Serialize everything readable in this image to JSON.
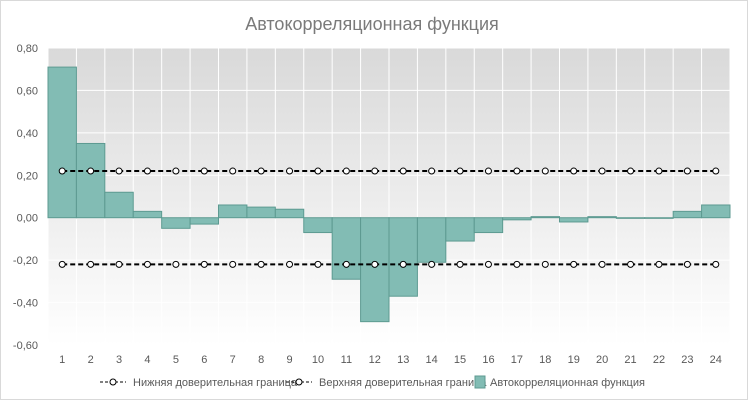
{
  "chart_data": {
    "type": "bar",
    "title": "Автокорреляционная функция",
    "xlabel": "",
    "ylabel": "",
    "categories": [
      "1",
      "2",
      "3",
      "4",
      "5",
      "6",
      "7",
      "8",
      "9",
      "10",
      "11",
      "12",
      "13",
      "14",
      "15",
      "16",
      "17",
      "18",
      "19",
      "20",
      "21",
      "22",
      "23",
      "24"
    ],
    "ylim": [
      -0.6,
      0.8
    ],
    "yticks": [
      -0.6,
      -0.4,
      -0.2,
      0.0,
      0.2,
      0.4,
      0.6,
      0.8
    ],
    "ytick_labels": [
      "-0,60",
      "-0,40",
      "-0,20",
      "0,00",
      "0,20",
      "0,40",
      "0,60",
      "0,80"
    ],
    "grid": true,
    "legend_position": "bottom",
    "series": [
      {
        "name": "Нижняя доверительная граница",
        "type": "line",
        "style": "dashed-with-hollow-markers",
        "color": "#000000",
        "values": [
          -0.22,
          -0.22,
          -0.22,
          -0.22,
          -0.22,
          -0.22,
          -0.22,
          -0.22,
          -0.22,
          -0.22,
          -0.22,
          -0.22,
          -0.22,
          -0.22,
          -0.22,
          -0.22,
          -0.22,
          -0.22,
          -0.22,
          -0.22,
          -0.22,
          -0.22,
          -0.22,
          -0.22
        ]
      },
      {
        "name": "Верхняя доверительная граница",
        "type": "line",
        "style": "dashed-with-hollow-markers",
        "color": "#000000",
        "values": [
          0.22,
          0.22,
          0.22,
          0.22,
          0.22,
          0.22,
          0.22,
          0.22,
          0.22,
          0.22,
          0.22,
          0.22,
          0.22,
          0.22,
          0.22,
          0.22,
          0.22,
          0.22,
          0.22,
          0.22,
          0.22,
          0.22,
          0.22,
          0.22
        ]
      },
      {
        "name": "Автокорреляционная функция",
        "type": "bar",
        "color": "#82bcb4",
        "border_color": "#5d9a91",
        "values": [
          0.71,
          0.35,
          0.12,
          0.03,
          -0.05,
          -0.03,
          0.06,
          0.05,
          0.04,
          -0.07,
          -0.29,
          -0.49,
          -0.37,
          -0.21,
          -0.11,
          -0.07,
          -0.01,
          0.005,
          -0.02,
          0.005,
          -0.003,
          -0.003,
          0.03,
          0.06
        ]
      }
    ],
    "colors": {
      "plot_background_top": "#d9d9d9",
      "plot_background_bottom": "#ffffff",
      "gridline": "#ffffff",
      "text": "#595959",
      "title": "#7a7a7a"
    }
  }
}
